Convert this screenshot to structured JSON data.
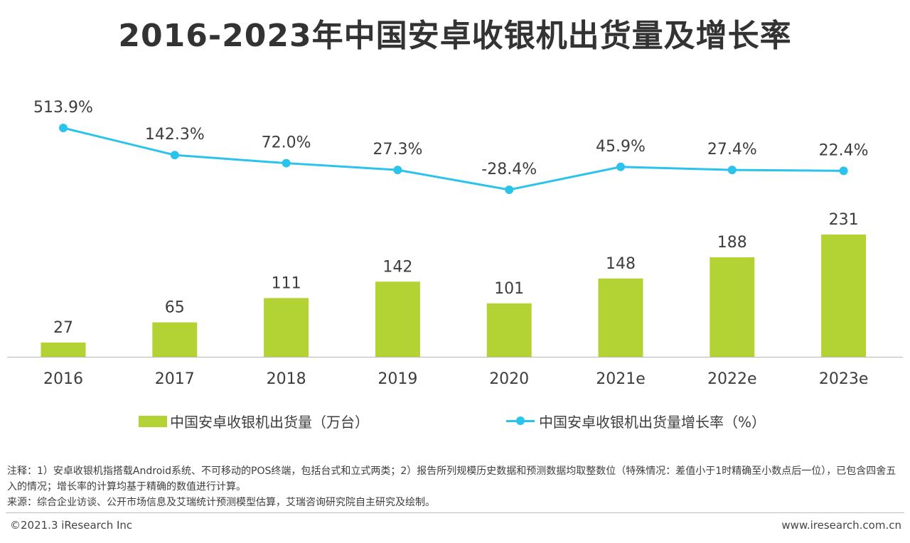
{
  "title": "2016-2023年中国安卓收银机出货量及增长率",
  "chart_data": {
    "type": "bar",
    "categories": [
      "2016",
      "2017",
      "2018",
      "2019",
      "2020",
      "2021e",
      "2022e",
      "2023e"
    ],
    "series": [
      {
        "name": "中国安卓收银机出货量（万台）",
        "type": "bar",
        "color": "#b3d334",
        "values": [
          27,
          65,
          111,
          142,
          101,
          148,
          188,
          231
        ],
        "labels": [
          "27",
          "65",
          "111",
          "142",
          "101",
          "148",
          "188",
          "231"
        ]
      },
      {
        "name": "中国安卓收银机出货量增长率（%）",
        "type": "line",
        "color": "#29c3ec",
        "values": [
          513.9,
          142.3,
          72.0,
          27.3,
          -28.4,
          45.9,
          27.4,
          22.4
        ],
        "labels": [
          "513.9%",
          "142.3%",
          "72.0%",
          "27.3%",
          "-28.4%",
          "45.9%",
          "27.4%",
          "22.4%"
        ]
      }
    ],
    "ylim_bar": [
      0,
      231
    ],
    "ylim_line": [
      -28.4,
      513.9
    ],
    "grid": false,
    "legend": "bottom"
  },
  "footnote": {
    "note": "注释：1）安卓收银机指搭载Android系统、不可移动的POS终端，包括台式和立式两类；2）报告所列规模历史数据和预测数据均取整数位（特殊情况：差值小于1时精确至小数点后一位），已包含四舍五入的情况；增长率的计算均基于精确的数值进行计算。",
    "source": "来源：综合企业访谈、公开市场信息及艾瑞统计预测模型估算，艾瑞咨询研究院自主研究及绘制。"
  },
  "copyright": "©2021.3 iResearch Inc",
  "website": "www.iresearch.com.cn"
}
